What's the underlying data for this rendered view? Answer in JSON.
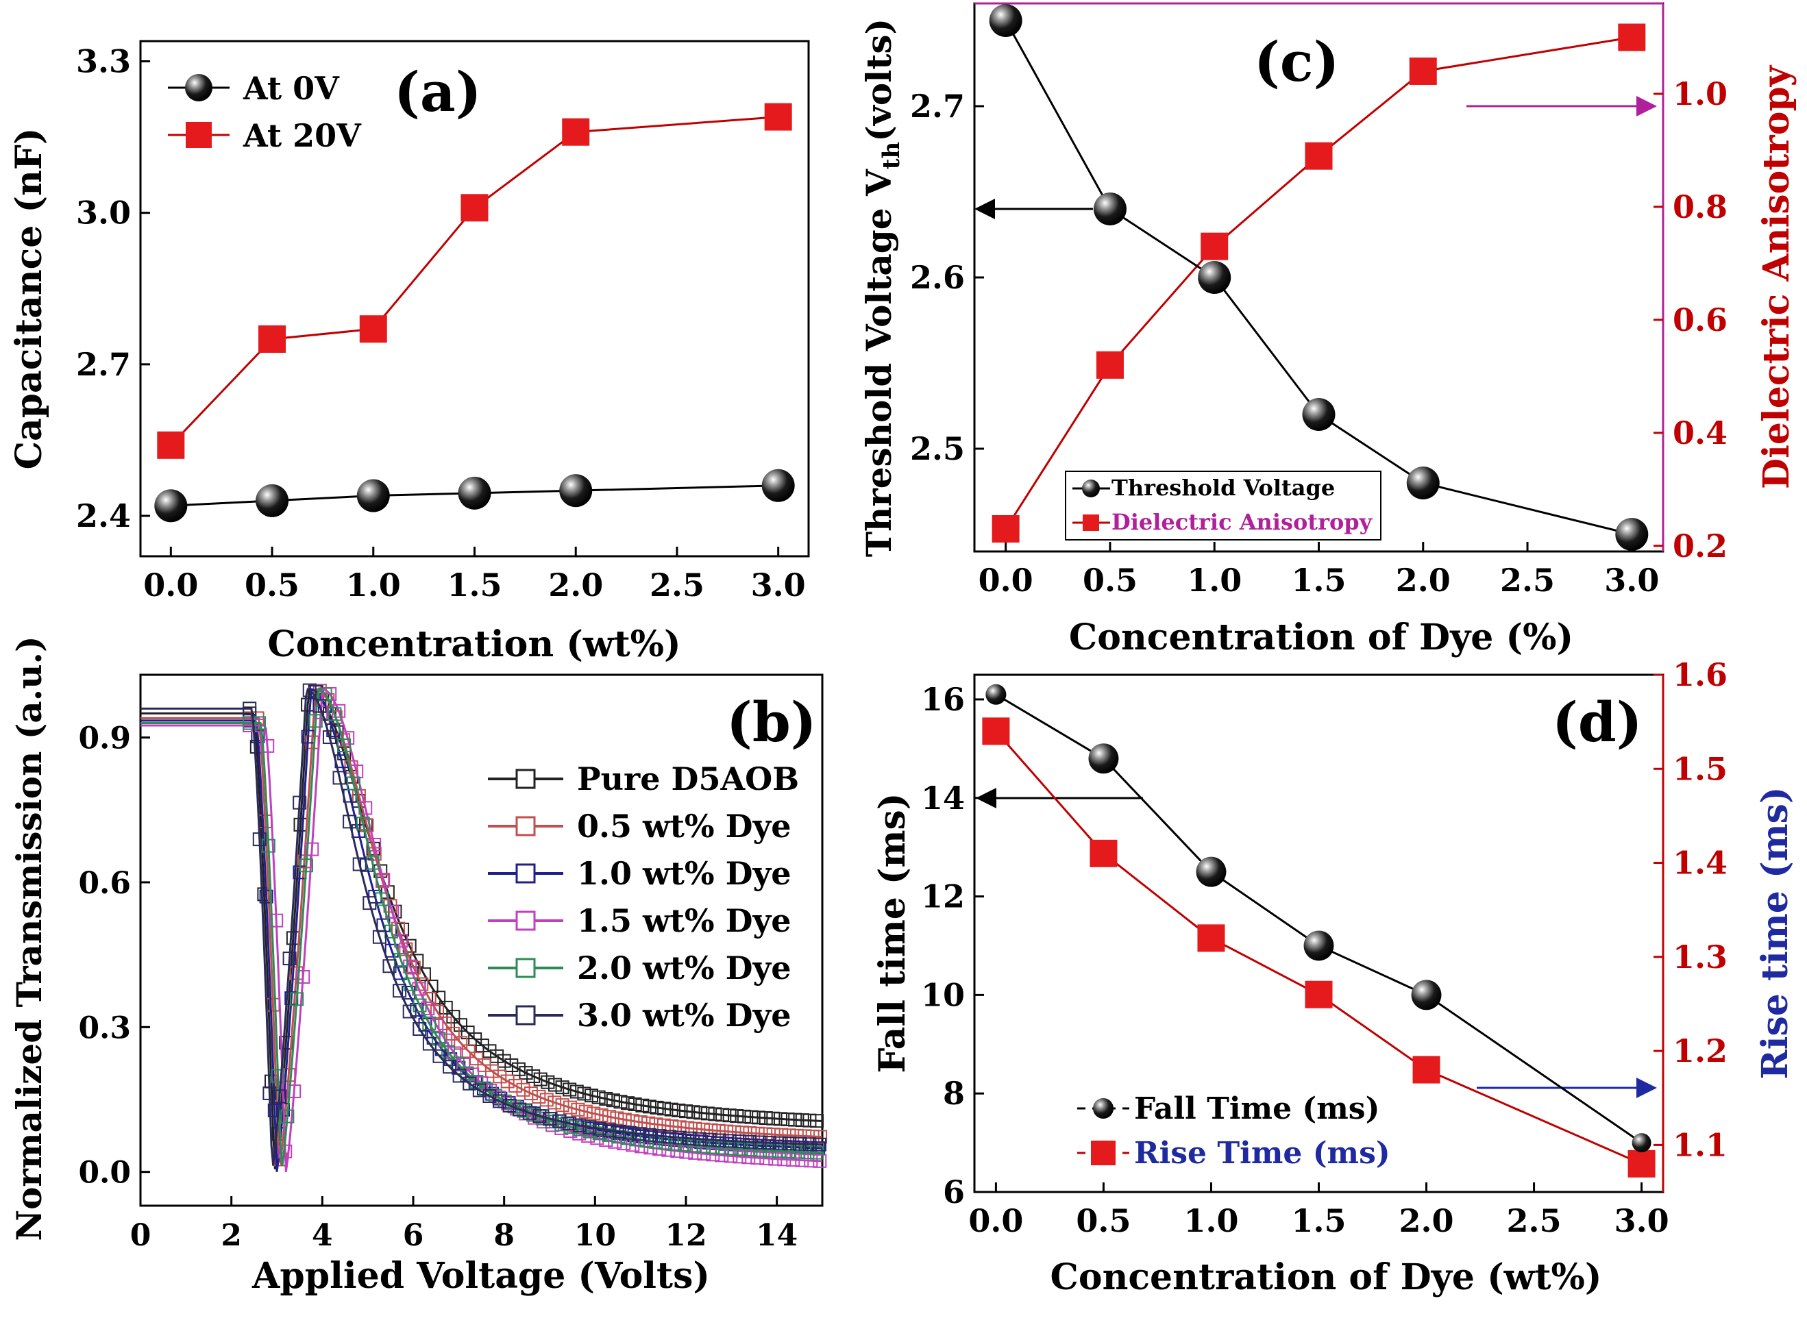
{
  "chart_data": [
    {
      "id": "a",
      "panel_label": "(a)",
      "type": "line",
      "xlabel": "Concentration (wt%)",
      "ylabel": "Capacitance (nF)",
      "xlim": [
        -0.15,
        3.15
      ],
      "ylim": [
        2.32,
        3.34
      ],
      "xticks": [
        0.0,
        0.5,
        1.0,
        1.5,
        2.0,
        2.5,
        3.0
      ],
      "xtick_labels": [
        "0.0",
        "0.5",
        "1.0",
        "1.5",
        "2.0",
        "2.5",
        "3.0"
      ],
      "yticks": [
        2.4,
        2.7,
        3.0,
        3.3
      ],
      "ytick_labels": [
        "2.4",
        "2.7",
        "3.0",
        "3.3"
      ],
      "legend_position": "top-left",
      "series": [
        {
          "name": "At 0V",
          "color": "#000000",
          "marker": "ball",
          "x": [
            0.0,
            0.5,
            1.0,
            1.5,
            2.0,
            3.0
          ],
          "values": [
            2.42,
            2.43,
            2.44,
            2.445,
            2.45,
            2.46
          ]
        },
        {
          "name": "At 20V",
          "color": "#d7191c",
          "marker": "square",
          "x": [
            0.0,
            0.5,
            1.0,
            1.5,
            2.0,
            3.0
          ],
          "values": [
            2.54,
            2.75,
            2.77,
            3.01,
            3.16,
            3.19
          ]
        }
      ]
    },
    {
      "id": "b",
      "panel_label": "(b)",
      "type": "line",
      "xlabel": "Applied Voltage (Volts)",
      "ylabel": "Normalized Transmission (a.u.)",
      "xlim": [
        0,
        15
      ],
      "ylim": [
        -0.07,
        1.03
      ],
      "xticks": [
        0,
        2,
        4,
        6,
        8,
        10,
        12,
        14
      ],
      "xtick_labels": [
        "0",
        "2",
        "4",
        "6",
        "8",
        "10",
        "12",
        "14"
      ],
      "yticks": [
        0.0,
        0.3,
        0.6,
        0.9
      ],
      "ytick_labels": [
        "0.0",
        "0.3",
        "0.6",
        "0.9"
      ],
      "legend_position": "right",
      "series": [
        {
          "name": "Pure D5AOB",
          "color": "#222222",
          "plateau": 0.95,
          "min_v": 2.95,
          "peak_v": 3.7,
          "tail": 0.08,
          "decay": 2.4
        },
        {
          "name": "0.5 wt% Dye",
          "color": "#c0504d",
          "plateau": 0.94,
          "min_v": 3.05,
          "peak_v": 3.85,
          "tail": 0.05,
          "decay": 2.2
        },
        {
          "name": "1.0 wt% Dye",
          "color": "#1f1f8f",
          "plateau": 0.935,
          "min_v": 3.0,
          "peak_v": 3.75,
          "tail": 0.03,
          "decay": 2.0
        },
        {
          "name": "1.5 wt% Dye",
          "color": "#c040c0",
          "plateau": 0.925,
          "min_v": 3.2,
          "peak_v": 4.0,
          "tail": 0.0,
          "decay": 2.1
        },
        {
          "name": "2.0 wt% Dye",
          "color": "#2e8b57",
          "plateau": 0.93,
          "min_v": 3.1,
          "peak_v": 3.9,
          "tail": 0.02,
          "decay": 2.0
        },
        {
          "name": "3.0 wt% Dye",
          "color": "#2a2a5a",
          "plateau": 0.96,
          "min_v": 2.9,
          "peak_v": 3.65,
          "tail": 0.04,
          "decay": 1.9
        }
      ]
    },
    {
      "id": "c",
      "panel_label": "(c)",
      "type": "line",
      "xlabel": "Concentration of Dye (%)",
      "ylabel_left": "Threshold Voltage V",
      "ylabel_left_sub": "th",
      "ylabel_left_unit": "(volts)",
      "ylabel_right": "Dielectric Anisotropy",
      "xlim": [
        -0.15,
        3.15
      ],
      "ylim_left": [
        2.44,
        2.76
      ],
      "ylim_right": [
        0.19,
        1.16
      ],
      "xticks": [
        0.0,
        0.5,
        1.0,
        1.5,
        2.0,
        2.5,
        3.0
      ],
      "xtick_labels": [
        "0.0",
        "0.5",
        "1.0",
        "1.5",
        "2.0",
        "2.5",
        "3.0"
      ],
      "yticks_left": [
        2.5,
        2.6,
        2.7
      ],
      "ytick_labels_left": [
        "2.5",
        "2.6",
        "2.7"
      ],
      "yticks_right": [
        0.2,
        0.4,
        0.6,
        0.8,
        1.0
      ],
      "ytick_labels_right": [
        "0.2",
        "0.4",
        "0.6",
        "0.8",
        "1.0"
      ],
      "legend_position": "bottom-left",
      "series": [
        {
          "name": "Threshold Voltage",
          "axis": "left",
          "color": "#000000",
          "marker": "ball",
          "x": [
            0.0,
            0.5,
            1.0,
            1.5,
            2.0,
            3.0
          ],
          "values": [
            2.75,
            2.64,
            2.6,
            2.52,
            2.48,
            2.45
          ]
        },
        {
          "name": "Dielectric Anisotropy",
          "axis": "right",
          "color": "#d7191c",
          "marker": "square",
          "x": [
            0.0,
            0.5,
            1.0,
            1.5,
            2.0,
            3.0
          ],
          "values": [
            0.23,
            0.52,
            0.73,
            0.89,
            1.04,
            1.1
          ]
        }
      ]
    },
    {
      "id": "d",
      "panel_label": "(d)",
      "type": "line",
      "xlabel": "Concentration of Dye (wt%)",
      "ylabel_left": "Fall time (ms)",
      "ylabel_right": "Rise time (ms)",
      "xlim": [
        -0.1,
        3.1
      ],
      "ylim_left": [
        6,
        16.5
      ],
      "ylim_right": [
        1.05,
        1.6
      ],
      "xticks": [
        0.0,
        0.5,
        1.0,
        1.5,
        2.0,
        2.5,
        3.0
      ],
      "xtick_labels": [
        "0.0",
        "0.5",
        "1.0",
        "1.5",
        "2.0",
        "2.5",
        "3.0"
      ],
      "yticks_left": [
        6,
        8,
        10,
        12,
        14,
        16
      ],
      "ytick_labels_left": [
        "6",
        "8",
        "10",
        "12",
        "14",
        "16"
      ],
      "yticks_right": [
        1.1,
        1.2,
        1.3,
        1.4,
        1.5,
        1.6
      ],
      "ytick_labels_right": [
        "1.1",
        "1.2",
        "1.3",
        "1.4",
        "1.5",
        "1.6"
      ],
      "legend_position": "bottom-left",
      "series": [
        {
          "name": "Fall Time (ms)",
          "axis": "left",
          "color": "#000000",
          "marker": "ball",
          "x": [
            0.0,
            0.5,
            1.0,
            1.5,
            2.0,
            3.0
          ],
          "values": [
            16.1,
            14.8,
            12.5,
            11.0,
            10.0,
            7.0
          ]
        },
        {
          "name": "Rise Time (ms)",
          "axis": "right",
          "color": "#d7191c",
          "marker": "square",
          "x": [
            0.0,
            0.5,
            1.0,
            1.5,
            2.0,
            3.0
          ],
          "values": [
            1.54,
            1.41,
            1.32,
            1.26,
            1.18,
            1.08
          ]
        }
      ]
    }
  ],
  "colors": {
    "black": "#000000",
    "red_axis": "#c00000",
    "red_marker": "#e41a1c",
    "magenta_axis": "#b0209a",
    "navy": "#1f2aa0"
  }
}
